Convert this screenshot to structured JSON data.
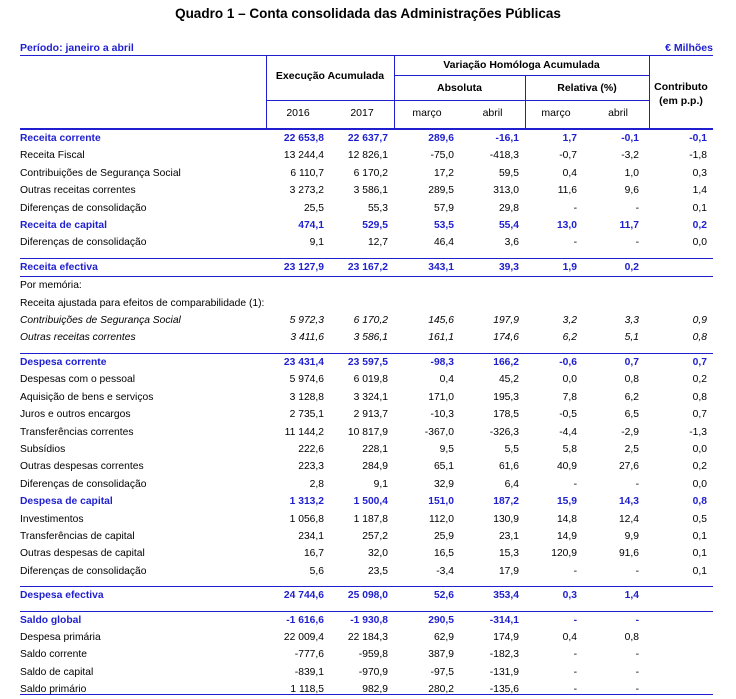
{
  "title": "Quadro 1 – Conta consolidada das Administrações Públicas",
  "period": "Período: janeiro a abril",
  "unit": "€ Milhões",
  "headers": {
    "exec": "Execução Acumulada",
    "var": "Variação Homóloga Acumulada",
    "abs": "Absoluta",
    "rel": "Relativa (%)",
    "contrib1": "Contributo",
    "contrib2": "(em p.p.)",
    "y2016": "2016",
    "y2017": "2017",
    "marco_a": "março",
    "abril_a": "abril",
    "marco_r": "março",
    "abril_r": "abril"
  },
  "rows": [
    {
      "label": "Receita corrente",
      "v": [
        "22 653,8",
        "22 637,7",
        "289,6",
        "-16,1",
        "1,7",
        "-0,1",
        "-0,1"
      ],
      "style": "main",
      "sep": true
    },
    {
      "label": "Receita Fiscal",
      "v": [
        "13 244,4",
        "12 826,1",
        "-75,0",
        "-418,3",
        "-0,7",
        "-3,2",
        "-1,8"
      ],
      "style": "ind1"
    },
    {
      "label": "Contribuições de Segurança Social",
      "v": [
        "6 110,7",
        "6 170,2",
        "17,2",
        "59,5",
        "0,4",
        "1,0",
        "0,3"
      ],
      "style": "ind1"
    },
    {
      "label": "Outras receitas correntes",
      "v": [
        "3 273,2",
        "3 586,1",
        "289,5",
        "313,0",
        "11,6",
        "9,6",
        "1,4"
      ],
      "style": "ind1"
    },
    {
      "label": "Diferenças de consolidação",
      "v": [
        "25,5",
        "55,3",
        "57,9",
        "29,8",
        "-",
        "-",
        "0,1"
      ],
      "style": "ind1"
    },
    {
      "label": "Receita de capital",
      "v": [
        "474,1",
        "529,5",
        "53,5",
        "55,4",
        "13,0",
        "11,7",
        "0,2"
      ],
      "style": "main"
    },
    {
      "label": "Diferenças de consolidação",
      "v": [
        "9,1",
        "12,7",
        "46,4",
        "3,6",
        "-",
        "-",
        "0,0"
      ],
      "style": "ind1"
    },
    {
      "gap": true
    },
    {
      "label": "Receita efectiva",
      "v": [
        "23 127,9",
        "23 167,2",
        "343,1",
        "39,3",
        "1,9",
        "0,2",
        ""
      ],
      "style": "main",
      "sep": true
    },
    {
      "label": "Por memória:",
      "v": [
        "",
        "",
        "",
        "",
        "",
        "",
        ""
      ],
      "style": "ind1",
      "sep": true
    },
    {
      "label": "Receita ajustada para efeitos de comparabilidade (1):",
      "v": [
        "",
        "",
        "",
        "",
        "",
        "",
        ""
      ],
      "style": "ind1"
    },
    {
      "label": "Contribuições de Segurança Social",
      "v": [
        "5 972,3",
        "6 170,2",
        "145,6",
        "197,9",
        "3,2",
        "3,3",
        "0,9"
      ],
      "style": "ind2 italic"
    },
    {
      "label": "Outras receitas correntes",
      "v": [
        "3 411,6",
        "3 586,1",
        "161,1",
        "174,6",
        "6,2",
        "5,1",
        "0,8"
      ],
      "style": "ind2 italic"
    },
    {
      "gap": true
    },
    {
      "label": "Despesa corrente",
      "v": [
        "23 431,4",
        "23 597,5",
        "-98,3",
        "166,2",
        "-0,6",
        "0,7",
        "0,7"
      ],
      "style": "main",
      "sep": true
    },
    {
      "label": "Despesas com o pessoal",
      "v": [
        "5 974,6",
        "6 019,8",
        "0,4",
        "45,2",
        "0,0",
        "0,8",
        "0,2"
      ],
      "style": "ind1"
    },
    {
      "label": "Aquisição de bens e serviços",
      "v": [
        "3 128,8",
        "3 324,1",
        "171,0",
        "195,3",
        "7,8",
        "6,2",
        "0,8"
      ],
      "style": "ind1"
    },
    {
      "label": "Juros e outros encargos",
      "v": [
        "2 735,1",
        "2 913,7",
        "-10,3",
        "178,5",
        "-0,5",
        "6,5",
        "0,7"
      ],
      "style": "ind1"
    },
    {
      "label": "Transferências correntes",
      "v": [
        "11 144,2",
        "10 817,9",
        "-367,0",
        "-326,3",
        "-4,4",
        "-2,9",
        "-1,3"
      ],
      "style": "ind1"
    },
    {
      "label": "Subsídios",
      "v": [
        "222,6",
        "228,1",
        "9,5",
        "5,5",
        "5,8",
        "2,5",
        "0,0"
      ],
      "style": "ind1"
    },
    {
      "label": "Outras despesas correntes",
      "v": [
        "223,3",
        "284,9",
        "65,1",
        "61,6",
        "40,9",
        "27,6",
        "0,2"
      ],
      "style": "ind1"
    },
    {
      "label": "Diferenças de consolidação",
      "v": [
        "2,8",
        "9,1",
        "32,9",
        "6,4",
        "-",
        "-",
        "0,0"
      ],
      "style": "ind1"
    },
    {
      "label": "Despesa de capital",
      "v": [
        "1 313,2",
        "1 500,4",
        "151,0",
        "187,2",
        "15,9",
        "14,3",
        "0,8"
      ],
      "style": "main"
    },
    {
      "label": "Investimentos",
      "v": [
        "1 056,8",
        "1 187,8",
        "112,0",
        "130,9",
        "14,8",
        "12,4",
        "0,5"
      ],
      "style": "ind1"
    },
    {
      "label": "Transferências de capital",
      "v": [
        "234,1",
        "257,2",
        "25,9",
        "23,1",
        "14,9",
        "9,9",
        "0,1"
      ],
      "style": "ind1"
    },
    {
      "label": "Outras despesas de capital",
      "v": [
        "16,7",
        "32,0",
        "16,5",
        "15,3",
        "120,9",
        "91,6",
        "0,1"
      ],
      "style": "ind1"
    },
    {
      "label": "Diferenças de consolidação",
      "v": [
        "5,6",
        "23,5",
        "-3,4",
        "17,9",
        "-",
        "-",
        "0,1"
      ],
      "style": "ind1"
    },
    {
      "gap": true
    },
    {
      "label": "Despesa efectiva",
      "v": [
        "24 744,6",
        "25 098,0",
        "52,6",
        "353,4",
        "0,3",
        "1,4",
        ""
      ],
      "style": "main",
      "sep": true
    },
    {
      "gap": true
    },
    {
      "label": "Saldo global",
      "v": [
        "-1 616,6",
        "-1 930,8",
        "290,5",
        "-314,1",
        "-",
        "-",
        ""
      ],
      "style": "main",
      "sep": true
    },
    {
      "label": "Despesa primária",
      "v": [
        "22 009,4",
        "22 184,3",
        "62,9",
        "174,9",
        "0,4",
        "0,8",
        ""
      ],
      "style": "ind2"
    },
    {
      "label": "Saldo corrente",
      "v": [
        "-777,6",
        "-959,8",
        "387,9",
        "-182,3",
        "-",
        "-",
        ""
      ],
      "style": "ind2"
    },
    {
      "label": "Saldo de capital",
      "v": [
        "-839,1",
        "-970,9",
        "-97,5",
        "-131,9",
        "-",
        "-",
        ""
      ],
      "style": "ind2"
    },
    {
      "label": "Saldo primário",
      "v": [
        "1 118,5",
        "982,9",
        "280,2",
        "-135,6",
        "-",
        "-",
        ""
      ],
      "style": "ind2"
    }
  ]
}
